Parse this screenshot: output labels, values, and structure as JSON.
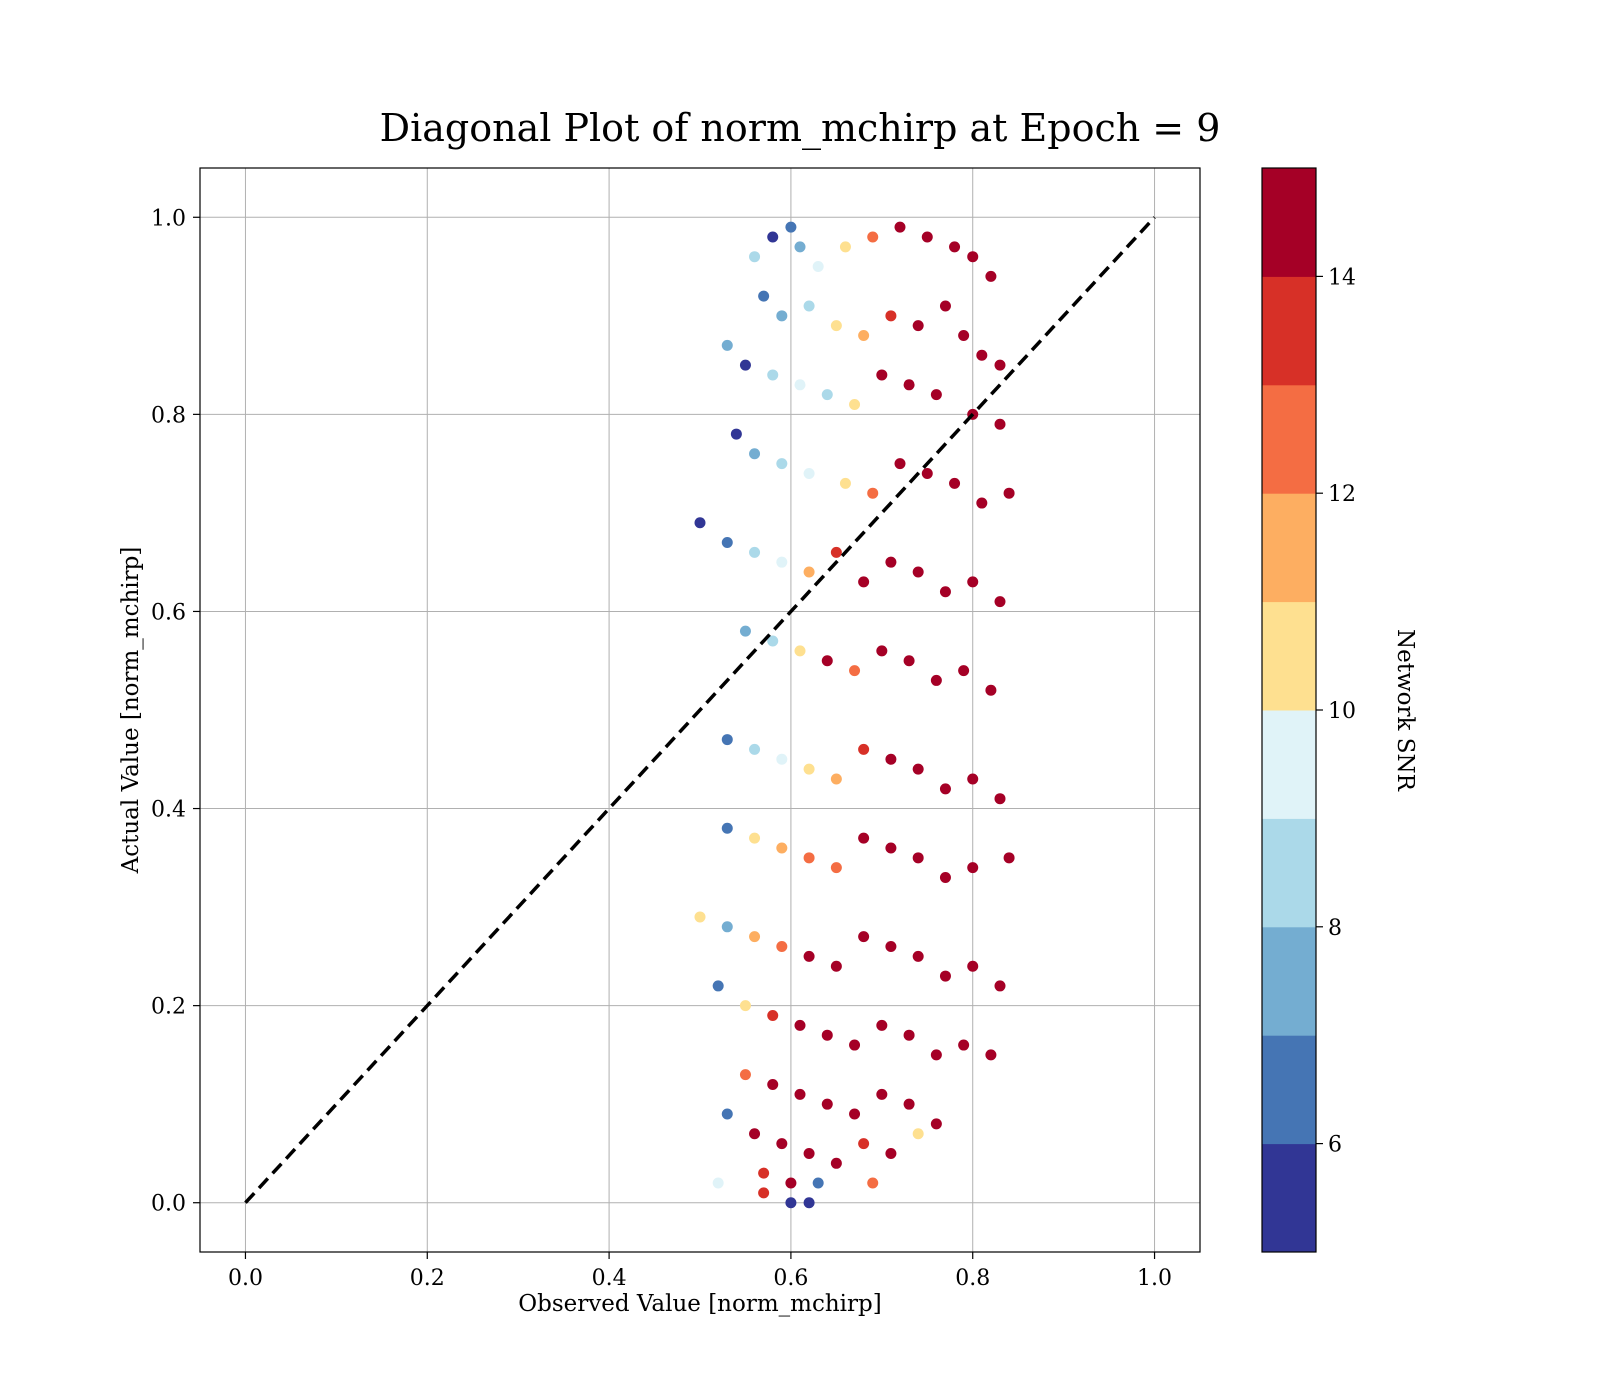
{
  "chart_data": {
    "type": "scatter",
    "title": "Diagonal Plot of norm_mchirp at Epoch = 9",
    "xlabel": "Observed Value [norm_mchirp]",
    "ylabel": "Actual Value [norm_mchirp]",
    "xlim": [
      -0.05,
      1.05
    ],
    "ylim": [
      -0.05,
      1.05
    ],
    "xticks": [
      0.0,
      0.2,
      0.4,
      0.6,
      0.8,
      1.0
    ],
    "yticks": [
      0.0,
      0.2,
      0.4,
      0.6,
      0.8,
      1.0
    ],
    "xtick_labels": [
      "0.0",
      "0.2",
      "0.4",
      "0.6",
      "0.8",
      "1.0"
    ],
    "ytick_labels": [
      "0.0",
      "0.2",
      "0.4",
      "0.6",
      "0.8",
      "1.0"
    ],
    "grid": true,
    "legend": "none",
    "reference_line": {
      "x": [
        0.0,
        1.0
      ],
      "y": [
        0.0,
        1.0
      ],
      "style": "dashed",
      "color": "#000000"
    },
    "colorbar": {
      "label": "Network SNR",
      "range": [
        5,
        15
      ],
      "ticks": [
        6,
        8,
        10,
        12,
        14
      ],
      "tick_labels": [
        "6",
        "8",
        "10",
        "12",
        "14"
      ],
      "levels": [
        5,
        6,
        7,
        8,
        9,
        10,
        11,
        12,
        13,
        14,
        15
      ],
      "colors": [
        "#313695",
        "#4575b4",
        "#74add1",
        "#abd9e9",
        "#e0f3f8",
        "#fee090",
        "#fdae61",
        "#f46d43",
        "#d73027",
        "#a50026"
      ]
    },
    "series_description_note": "",
    "series": [
      {
        "points": [
          [
            0.6,
            0.99,
            6
          ],
          [
            0.58,
            0.98,
            5
          ],
          [
            0.61,
            0.97,
            7
          ],
          [
            0.56,
            0.96,
            8
          ],
          [
            0.63,
            0.95,
            9
          ],
          [
            0.66,
            0.97,
            10
          ],
          [
            0.69,
            0.98,
            12
          ],
          [
            0.72,
            0.99,
            14
          ],
          [
            0.75,
            0.98,
            15
          ],
          [
            0.78,
            0.97,
            15
          ],
          [
            0.8,
            0.96,
            14
          ],
          [
            0.82,
            0.94,
            15
          ],
          [
            0.57,
            0.92,
            6
          ],
          [
            0.59,
            0.9,
            7
          ],
          [
            0.62,
            0.91,
            8
          ],
          [
            0.65,
            0.89,
            10
          ],
          [
            0.68,
            0.88,
            11
          ],
          [
            0.71,
            0.9,
            13
          ],
          [
            0.74,
            0.89,
            15
          ],
          [
            0.77,
            0.91,
            15
          ],
          [
            0.79,
            0.88,
            15
          ],
          [
            0.81,
            0.86,
            14
          ],
          [
            0.83,
            0.85,
            15
          ],
          [
            0.53,
            0.87,
            7
          ],
          [
            0.55,
            0.85,
            5
          ],
          [
            0.58,
            0.84,
            8
          ],
          [
            0.61,
            0.83,
            9
          ],
          [
            0.64,
            0.82,
            8
          ],
          [
            0.67,
            0.81,
            10
          ],
          [
            0.7,
            0.84,
            14
          ],
          [
            0.73,
            0.83,
            15
          ],
          [
            0.76,
            0.82,
            15
          ],
          [
            0.8,
            0.8,
            15
          ],
          [
            0.83,
            0.79,
            15
          ],
          [
            0.54,
            0.78,
            5
          ],
          [
            0.56,
            0.76,
            7
          ],
          [
            0.59,
            0.75,
            8
          ],
          [
            0.62,
            0.74,
            9
          ],
          [
            0.66,
            0.73,
            10
          ],
          [
            0.69,
            0.72,
            12
          ],
          [
            0.72,
            0.75,
            15
          ],
          [
            0.75,
            0.74,
            15
          ],
          [
            0.78,
            0.73,
            15
          ],
          [
            0.81,
            0.71,
            15
          ],
          [
            0.84,
            0.72,
            15
          ],
          [
            0.5,
            0.69,
            5
          ],
          [
            0.53,
            0.67,
            6
          ],
          [
            0.56,
            0.66,
            8
          ],
          [
            0.59,
            0.65,
            9
          ],
          [
            0.62,
            0.64,
            11
          ],
          [
            0.65,
            0.66,
            13
          ],
          [
            0.68,
            0.63,
            14
          ],
          [
            0.71,
            0.65,
            15
          ],
          [
            0.74,
            0.64,
            15
          ],
          [
            0.77,
            0.62,
            15
          ],
          [
            0.8,
            0.63,
            15
          ],
          [
            0.83,
            0.61,
            15
          ],
          [
            0.55,
            0.58,
            7
          ],
          [
            0.58,
            0.57,
            8
          ],
          [
            0.61,
            0.56,
            10
          ],
          [
            0.64,
            0.55,
            14
          ],
          [
            0.67,
            0.54,
            12
          ],
          [
            0.7,
            0.56,
            15
          ],
          [
            0.73,
            0.55,
            15
          ],
          [
            0.76,
            0.53,
            15
          ],
          [
            0.79,
            0.54,
            15
          ],
          [
            0.82,
            0.52,
            15
          ],
          [
            0.53,
            0.47,
            6
          ],
          [
            0.56,
            0.46,
            8
          ],
          [
            0.59,
            0.45,
            9
          ],
          [
            0.62,
            0.44,
            10
          ],
          [
            0.65,
            0.43,
            11
          ],
          [
            0.68,
            0.46,
            13
          ],
          [
            0.71,
            0.45,
            15
          ],
          [
            0.74,
            0.44,
            15
          ],
          [
            0.77,
            0.42,
            15
          ],
          [
            0.8,
            0.43,
            15
          ],
          [
            0.83,
            0.41,
            15
          ],
          [
            0.53,
            0.38,
            6
          ],
          [
            0.56,
            0.37,
            10
          ],
          [
            0.59,
            0.36,
            11
          ],
          [
            0.62,
            0.35,
            12
          ],
          [
            0.65,
            0.34,
            12
          ],
          [
            0.68,
            0.37,
            14
          ],
          [
            0.71,
            0.36,
            15
          ],
          [
            0.74,
            0.35,
            15
          ],
          [
            0.77,
            0.33,
            15
          ],
          [
            0.8,
            0.34,
            15
          ],
          [
            0.84,
            0.35,
            15
          ],
          [
            0.5,
            0.29,
            10
          ],
          [
            0.53,
            0.28,
            7
          ],
          [
            0.56,
            0.27,
            11
          ],
          [
            0.59,
            0.26,
            12
          ],
          [
            0.62,
            0.25,
            14
          ],
          [
            0.65,
            0.24,
            15
          ],
          [
            0.68,
            0.27,
            15
          ],
          [
            0.71,
            0.26,
            15
          ],
          [
            0.74,
            0.25,
            15
          ],
          [
            0.77,
            0.23,
            15
          ],
          [
            0.8,
            0.24,
            15
          ],
          [
            0.83,
            0.22,
            15
          ],
          [
            0.52,
            0.22,
            6
          ],
          [
            0.55,
            0.2,
            10
          ],
          [
            0.58,
            0.19,
            13
          ],
          [
            0.61,
            0.18,
            15
          ],
          [
            0.64,
            0.17,
            15
          ],
          [
            0.67,
            0.16,
            15
          ],
          [
            0.7,
            0.18,
            15
          ],
          [
            0.73,
            0.17,
            15
          ],
          [
            0.76,
            0.15,
            15
          ],
          [
            0.79,
            0.16,
            15
          ],
          [
            0.82,
            0.15,
            15
          ],
          [
            0.55,
            0.13,
            12
          ],
          [
            0.58,
            0.12,
            15
          ],
          [
            0.61,
            0.11,
            15
          ],
          [
            0.64,
            0.1,
            15
          ],
          [
            0.67,
            0.09,
            15
          ],
          [
            0.7,
            0.11,
            15
          ],
          [
            0.73,
            0.1,
            15
          ],
          [
            0.76,
            0.08,
            14
          ],
          [
            0.53,
            0.09,
            6
          ],
          [
            0.56,
            0.07,
            14
          ],
          [
            0.59,
            0.06,
            15
          ],
          [
            0.62,
            0.05,
            15
          ],
          [
            0.65,
            0.04,
            14
          ],
          [
            0.68,
            0.06,
            13
          ],
          [
            0.71,
            0.05,
            15
          ],
          [
            0.74,
            0.07,
            10
          ],
          [
            0.57,
            0.03,
            13
          ],
          [
            0.6,
            0.02,
            15
          ],
          [
            0.63,
            0.02,
            6
          ],
          [
            0.6,
            0.0,
            5
          ],
          [
            0.62,
            0.0,
            5
          ],
          [
            0.69,
            0.02,
            12
          ],
          [
            0.52,
            0.02,
            9
          ],
          [
            0.57,
            0.01,
            13
          ]
        ]
      }
    ]
  }
}
